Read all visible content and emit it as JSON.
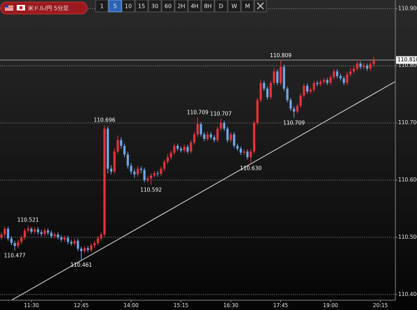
{
  "chart_data": {
    "type": "candlestick",
    "toolbar": {
      "symbol": "米ドル/円 5分足",
      "intervals": [
        "1",
        "5",
        "10",
        "15",
        "30",
        "60",
        "2H",
        "4H",
        "8H",
        "D",
        "W",
        "M"
      ],
      "selected": "5"
    },
    "categories": [
      null,
      null,
      null,
      null,
      null,
      null,
      null,
      null,
      null,
      "11:30",
      null,
      null,
      null,
      null,
      null,
      null,
      null,
      null,
      null,
      null,
      null,
      null,
      null,
      null,
      "12:45",
      null,
      null,
      null,
      null,
      null,
      null,
      null,
      null,
      null,
      null,
      null,
      null,
      null,
      null,
      "14:00",
      null,
      null,
      null,
      null,
      null,
      null,
      null,
      null,
      null,
      null,
      null,
      null,
      null,
      null,
      "15:15",
      null,
      null,
      null,
      null,
      null,
      null,
      null,
      null,
      null,
      null,
      null,
      null,
      null,
      null,
      "16:30",
      null,
      null,
      null,
      null,
      null,
      null,
      null,
      null,
      null,
      null,
      null,
      null,
      null,
      null,
      "17:45",
      null,
      null,
      null,
      null,
      null,
      null,
      null,
      null,
      null,
      null,
      null,
      null,
      null,
      null,
      "19:00",
      null,
      null,
      null,
      null,
      null,
      null,
      null,
      null,
      null,
      null,
      null,
      null,
      null,
      null,
      "20:15"
    ],
    "open": [
      110.5,
      110.505,
      110.515,
      110.498,
      110.49,
      110.485,
      110.492,
      110.5,
      110.512,
      110.515,
      110.51,
      110.514,
      110.509,
      110.506,
      110.512,
      110.508,
      110.502,
      110.505,
      110.5,
      110.496,
      110.499,
      110.492,
      110.489,
      110.494,
      110.48,
      110.476,
      110.481,
      110.478,
      110.486,
      110.49,
      110.498,
      110.505,
      110.69,
      110.62,
      110.615,
      110.65,
      110.67,
      110.66,
      110.645,
      110.625,
      110.615,
      110.61,
      110.62,
      110.618,
      110.6,
      110.603,
      110.608,
      110.612,
      110.611,
      110.62,
      110.632,
      110.64,
      110.648,
      110.66,
      110.655,
      110.652,
      110.658,
      110.65,
      110.666,
      110.68,
      110.698,
      110.68,
      110.672,
      110.68,
      110.675,
      110.67,
      110.69,
      110.7,
      110.69,
      110.67,
      110.68,
      110.66,
      110.655,
      110.648,
      110.65,
      110.64,
      110.65,
      110.7,
      110.74,
      110.77,
      110.76,
      110.745,
      110.77,
      110.79,
      110.77,
      110.798,
      110.76,
      110.74,
      110.725,
      110.72,
      110.73,
      110.748,
      110.765,
      110.755,
      110.758,
      110.77,
      110.768,
      110.772,
      110.775,
      110.77,
      110.78,
      110.79,
      110.782,
      110.778,
      110.77,
      110.785,
      110.79,
      110.795,
      110.804,
      110.798,
      110.8,
      110.795,
      110.803,
      null,
      null
    ],
    "high": [
      110.509,
      110.519,
      110.519,
      110.502,
      110.494,
      110.496,
      110.504,
      110.516,
      110.521,
      110.518,
      110.518,
      110.518,
      110.513,
      110.516,
      110.516,
      110.512,
      110.509,
      110.509,
      110.504,
      110.503,
      110.503,
      110.496,
      110.498,
      110.498,
      110.484,
      110.485,
      110.485,
      110.49,
      110.494,
      110.502,
      110.509,
      110.696,
      110.694,
      110.626,
      110.656,
      110.678,
      110.675,
      110.664,
      110.65,
      110.63,
      110.62,
      110.625,
      110.624,
      110.622,
      110.608,
      110.612,
      110.616,
      110.616,
      110.624,
      110.636,
      110.646,
      110.652,
      110.664,
      110.664,
      110.659,
      110.662,
      110.662,
      110.67,
      110.684,
      110.709,
      110.702,
      110.684,
      110.685,
      110.684,
      110.679,
      110.694,
      110.707,
      110.704,
      110.694,
      110.684,
      110.684,
      110.664,
      110.659,
      110.654,
      110.654,
      110.654,
      110.704,
      110.744,
      110.776,
      110.774,
      110.764,
      110.774,
      110.796,
      110.794,
      110.809,
      110.802,
      110.764,
      110.744,
      110.729,
      110.734,
      110.752,
      110.769,
      110.769,
      110.762,
      110.774,
      110.774,
      110.776,
      110.779,
      110.779,
      110.784,
      110.794,
      110.794,
      110.786,
      110.782,
      110.789,
      110.796,
      110.8,
      110.808,
      110.808,
      110.805,
      110.804,
      110.807,
      110.816,
      null,
      null
    ],
    "low": [
      110.496,
      110.501,
      110.494,
      110.486,
      110.477,
      110.481,
      110.488,
      110.496,
      110.508,
      110.506,
      110.506,
      110.505,
      110.502,
      110.502,
      110.504,
      110.498,
      110.498,
      110.496,
      110.492,
      110.492,
      110.488,
      110.485,
      110.485,
      110.476,
      110.461,
      110.472,
      110.474,
      110.474,
      110.482,
      110.486,
      110.494,
      110.501,
      110.612,
      110.61,
      110.611,
      110.646,
      110.655,
      110.64,
      110.62,
      110.61,
      110.604,
      110.606,
      110.612,
      110.596,
      110.596,
      110.592,
      110.604,
      110.606,
      110.607,
      110.616,
      110.628,
      110.636,
      110.644,
      110.651,
      110.648,
      110.648,
      110.646,
      110.646,
      110.662,
      110.676,
      110.676,
      110.668,
      110.668,
      110.671,
      110.666,
      110.666,
      110.686,
      110.686,
      110.666,
      110.666,
      110.656,
      110.651,
      110.644,
      110.644,
      110.636,
      110.63,
      110.646,
      110.696,
      110.736,
      110.756,
      110.741,
      110.741,
      110.766,
      110.766,
      110.766,
      110.756,
      110.736,
      110.721,
      110.709,
      110.716,
      110.726,
      110.744,
      110.751,
      110.751,
      110.754,
      110.764,
      110.764,
      110.768,
      110.766,
      110.766,
      110.776,
      110.778,
      110.774,
      110.766,
      110.766,
      110.781,
      110.786,
      110.791,
      110.794,
      110.794,
      110.791,
      110.791,
      110.799,
      null,
      null
    ],
    "close": [
      110.505,
      110.515,
      110.498,
      110.49,
      110.485,
      110.492,
      110.5,
      110.512,
      110.515,
      110.51,
      110.514,
      110.509,
      110.506,
      110.512,
      110.508,
      110.502,
      110.505,
      110.5,
      110.496,
      110.499,
      110.492,
      110.489,
      110.494,
      110.48,
      110.476,
      110.481,
      110.478,
      110.486,
      110.49,
      110.498,
      110.505,
      110.69,
      110.62,
      110.615,
      110.65,
      110.67,
      110.66,
      110.645,
      110.625,
      110.615,
      110.61,
      110.62,
      110.618,
      110.6,
      110.603,
      110.608,
      110.612,
      110.611,
      110.62,
      110.632,
      110.64,
      110.648,
      110.66,
      110.655,
      110.652,
      110.658,
      110.65,
      110.666,
      110.68,
      110.698,
      110.68,
      110.672,
      110.68,
      110.675,
      110.67,
      110.69,
      110.7,
      110.69,
      110.67,
      110.68,
      110.66,
      110.655,
      110.648,
      110.65,
      110.64,
      110.65,
      110.7,
      110.74,
      110.77,
      110.76,
      110.745,
      110.77,
      110.79,
      110.77,
      110.798,
      110.76,
      110.74,
      110.725,
      110.72,
      110.73,
      110.748,
      110.765,
      110.755,
      110.758,
      110.77,
      110.768,
      110.772,
      110.775,
      110.77,
      110.78,
      110.79,
      110.782,
      110.778,
      110.77,
      110.785,
      110.79,
      110.795,
      110.804,
      110.798,
      110.8,
      110.795,
      110.803,
      110.81,
      null,
      null
    ],
    "up_color": "#e8323c",
    "down_color": "#6fa8e8",
    "ylim": [
      110.39,
      110.915
    ],
    "yticks": [
      {
        "value": 110.4,
        "label": "110.400"
      },
      {
        "value": 110.5,
        "label": "110.500"
      },
      {
        "value": 110.6,
        "label": "110.600"
      },
      {
        "value": 110.7,
        "label": "110.700"
      },
      {
        "value": 110.8,
        "label": "110.800"
      },
      {
        "value": 110.9,
        "label": "110.900"
      }
    ],
    "grid": true,
    "high_labels": [
      {
        "value": 110.521,
        "label": "110.521"
      },
      {
        "value": 110.696,
        "label": "110.696"
      },
      {
        "value": 110.709,
        "label": "110.709"
      },
      {
        "value": 110.707,
        "label": "110.707"
      },
      {
        "value": 110.809,
        "label": "110.809"
      }
    ],
    "low_labels": [
      {
        "value": 110.477,
        "label": "110.477"
      },
      {
        "value": 110.461,
        "label": "110.461"
      },
      {
        "value": 110.592,
        "label": "110.592"
      },
      {
        "value": 110.63,
        "label": "110.630"
      },
      {
        "value": 110.709,
        "label": "110.709"
      }
    ],
    "last_price": {
      "value": 110.81,
      "label": "110.810"
    },
    "trendline": [
      110.38,
      110.751
    ]
  }
}
